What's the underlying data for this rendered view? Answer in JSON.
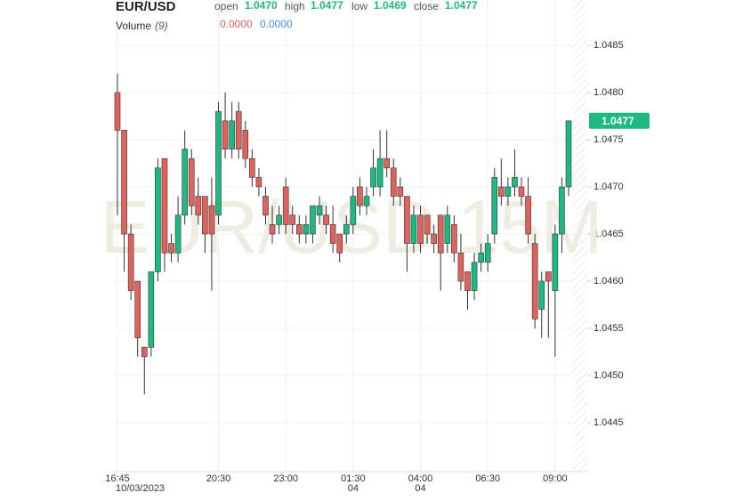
{
  "chart_data": {
    "type": "candlestick",
    "symbol": "EUR/USD",
    "watermark": "EUR/USD 15M",
    "legend_fields": [
      {
        "name": "open",
        "value": "1.0470"
      },
      {
        "name": "high",
        "value": "1.0477"
      },
      {
        "name": "low",
        "value": "1.0469"
      },
      {
        "name": "close",
        "value": "1.0477"
      }
    ],
    "volume_label": "Volume",
    "volume_param": "(9)",
    "volume_values": [
      {
        "value": "0.0000",
        "color": "#e0625c"
      },
      {
        "value": "0.0000",
        "color": "#4a90e2"
      }
    ],
    "last_price": "1.0477",
    "up_color": "#1eb980",
    "down_color": "#e0625c",
    "categories": [
      "16:45",
      null,
      null,
      null,
      null,
      null,
      null,
      null,
      null,
      null,
      null,
      null,
      null,
      null,
      null,
      "20:30",
      null,
      null,
      null,
      null,
      null,
      null,
      null,
      null,
      null,
      "23:00",
      null,
      null,
      null,
      null,
      null,
      null,
      null,
      null,
      null,
      "01:30",
      null,
      null,
      null,
      null,
      null,
      null,
      null,
      null,
      null,
      "04:00",
      null,
      null,
      null,
      null,
      null,
      null,
      null,
      null,
      null,
      "06:30",
      null,
      null,
      null,
      null,
      null,
      null,
      null,
      null,
      null,
      "09:00",
      null,
      null
    ],
    "date_labels": [
      "10/03/2023",
      null,
      null,
      null,
      null,
      null,
      null,
      null,
      null,
      null,
      null,
      null,
      null,
      null,
      null,
      null,
      null,
      null,
      null,
      null,
      null,
      null,
      null,
      null,
      null,
      null,
      null,
      null,
      null,
      null,
      null,
      null,
      null,
      null,
      null,
      "04",
      null,
      null,
      null,
      null,
      null,
      null,
      null,
      null,
      null,
      "04",
      null,
      null,
      null,
      null,
      null,
      null,
      null,
      null,
      null,
      null,
      null,
      null,
      null,
      null,
      null,
      null,
      null,
      null,
      null,
      null,
      null,
      null
    ],
    "open": [
      1.048,
      1.0476,
      1.0465,
      1.046,
      1.0453,
      1.0453,
      1.0461,
      1.0473,
      1.0464,
      1.0463,
      1.0467,
      1.0473,
      1.0469,
      1.0469,
      1.0468,
      1.0467,
      1.0477,
      1.0474,
      1.0478,
      1.0476,
      1.0473,
      1.0471,
      1.0469,
      1.0466,
      1.0466,
      1.047,
      1.0467,
      1.0466,
      1.0465,
      1.0465,
      1.0467,
      1.0467,
      1.0466,
      1.0465,
      1.0465,
      1.0466,
      1.047,
      1.0468,
      1.047,
      1.047,
      1.0473,
      1.0472,
      1.047,
      1.0469,
      1.0464,
      1.0467,
      1.0467,
      1.0465,
      1.0467,
      1.0464,
      1.0466,
      1.0463,
      1.0461,
      1.0459,
      1.0462,
      1.0462,
      1.0465,
      1.047,
      1.0469,
      1.047,
      1.047,
      1.0469,
      1.0464,
      1.0457,
      1.0461,
      1.0459,
      1.0465,
      1.047
    ],
    "high": [
      1.0482,
      1.0476,
      1.0466,
      1.046,
      1.0453,
      1.0461,
      1.0473,
      1.0473,
      1.0465,
      1.0469,
      1.0476,
      1.0474,
      1.0471,
      1.0469,
      1.0471,
      1.0479,
      1.048,
      1.0479,
      1.0479,
      1.0477,
      1.0474,
      1.0472,
      1.047,
      1.0468,
      1.0468,
      1.0471,
      1.0468,
      1.0467,
      1.0467,
      1.0468,
      1.0469,
      1.0468,
      1.0468,
      1.0465,
      1.0467,
      1.047,
      1.0471,
      1.047,
      1.0474,
      1.0476,
      1.0476,
      1.0473,
      1.0471,
      1.0469,
      1.0468,
      1.0468,
      1.0467,
      1.0466,
      1.0467,
      1.0468,
      1.0467,
      1.0465,
      1.0461,
      1.0463,
      1.0464,
      1.0465,
      1.0472,
      1.0473,
      1.0471,
      1.0474,
      1.0471,
      1.0471,
      1.0465,
      1.0461,
      1.0461,
      1.0466,
      1.0471,
      1.0477
    ],
    "low": [
      1.0467,
      1.0461,
      1.0458,
      1.0452,
      1.0448,
      1.0452,
      1.046,
      1.0461,
      1.0462,
      1.0462,
      1.0466,
      1.0467,
      1.0466,
      1.0463,
      1.0459,
      1.0466,
      1.0473,
      1.0473,
      1.0473,
      1.0472,
      1.047,
      1.0469,
      1.0466,
      1.0464,
      1.0465,
      1.0465,
      1.0465,
      1.0464,
      1.0464,
      1.0464,
      1.0466,
      1.0465,
      1.0463,
      1.0462,
      1.0464,
      1.0465,
      1.0467,
      1.0467,
      1.0469,
      1.0469,
      1.0471,
      1.0468,
      1.0468,
      1.0461,
      1.0463,
      1.0463,
      1.0464,
      1.0463,
      1.0459,
      1.0463,
      1.0462,
      1.0459,
      1.0457,
      1.0458,
      1.0461,
      1.0461,
      1.0464,
      1.0468,
      1.0468,
      1.0469,
      1.0468,
      1.0464,
      1.0455,
      1.0454,
      1.0454,
      1.0452,
      1.0463,
      1.0469
    ],
    "close": [
      1.0476,
      1.0465,
      1.0459,
      1.0454,
      1.0452,
      1.0461,
      1.0472,
      1.0463,
      1.0463,
      1.0467,
      1.0474,
      1.0468,
      1.0467,
      1.0465,
      1.0465,
      1.0478,
      1.0474,
      1.0477,
      1.0474,
      1.0473,
      1.0471,
      1.047,
      1.0467,
      1.0465,
      1.0467,
      1.0466,
      1.0466,
      1.0465,
      1.0466,
      1.0468,
      1.0468,
      1.0466,
      1.0464,
      1.0463,
      1.0466,
      1.0469,
      1.0468,
      1.0469,
      1.0472,
      1.0473,
      1.0472,
      1.0469,
      1.0469,
      1.0464,
      1.0467,
      1.0464,
      1.0465,
      1.0464,
      1.0463,
      1.0467,
      1.0463,
      1.046,
      1.0459,
      1.0462,
      1.0463,
      1.0464,
      1.0471,
      1.0469,
      1.047,
      1.0471,
      1.0469,
      1.0465,
      1.0456,
      1.046,
      1.046,
      1.0465,
      1.047,
      1.0477
    ],
    "ylim": [
      1.044,
      1.049
    ],
    "yticks": [
      {
        "value": 1.0445,
        "label": "1.0445"
      },
      {
        "value": 1.045,
        "label": "1.0450"
      },
      {
        "value": 1.0455,
        "label": "1.0455"
      },
      {
        "value": 1.046,
        "label": "1.0460"
      },
      {
        "value": 1.0465,
        "label": "1.0465"
      },
      {
        "value": 1.047,
        "label": "1.0470"
      },
      {
        "value": 1.0475,
        "label": "1.0475"
      },
      {
        "value": 1.048,
        "label": "1.0480"
      },
      {
        "value": 1.0485,
        "label": "1.0485"
      }
    ],
    "grid": true
  }
}
